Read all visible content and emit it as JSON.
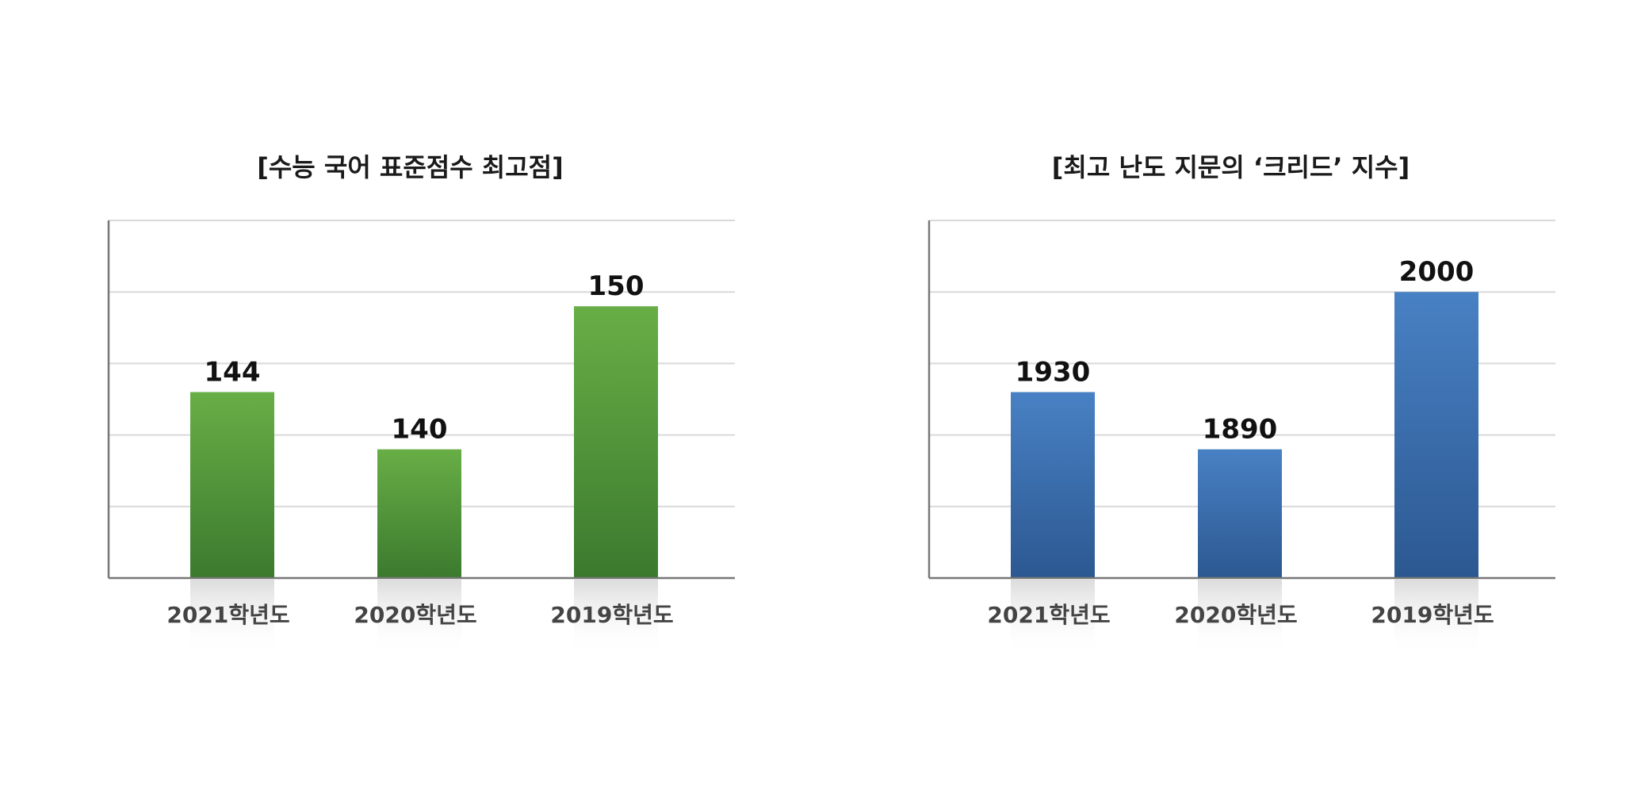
{
  "chart_data": [
    {
      "type": "bar",
      "title": "[수능 국어 표준점수 최고점]",
      "categories": [
        "2021학년도",
        "2020학년도",
        "2019학년도"
      ],
      "values": [
        144,
        140,
        150
      ],
      "value_labels": [
        "144",
        "140",
        "150"
      ],
      "xlabel": "",
      "ylabel": "",
      "ylim": [
        131,
        156
      ],
      "gridlines": [
        131,
        136,
        141,
        146,
        151,
        156
      ],
      "grid": true,
      "legend": "none",
      "colors": {
        "bar_top": "#68AE46",
        "bar_bottom": "#3B7A2E"
      }
    },
    {
      "type": "bar",
      "title": "[최고 난도 지문의 ‘크리드’ 지수]",
      "categories": [
        "2021학년도",
        "2020학년도",
        "2019학년도"
      ],
      "values": [
        1930,
        1890,
        2000
      ],
      "value_labels": [
        "1930",
        "1890",
        "2000"
      ],
      "xlabel": "",
      "ylabel": "",
      "ylim": [
        1800,
        2050
      ],
      "gridlines": [
        1800,
        1850,
        1900,
        1950,
        2000,
        2050
      ],
      "grid": true,
      "legend": "none",
      "colors": {
        "bar_top": "#4881C4",
        "bar_bottom": "#2C5891"
      }
    }
  ]
}
